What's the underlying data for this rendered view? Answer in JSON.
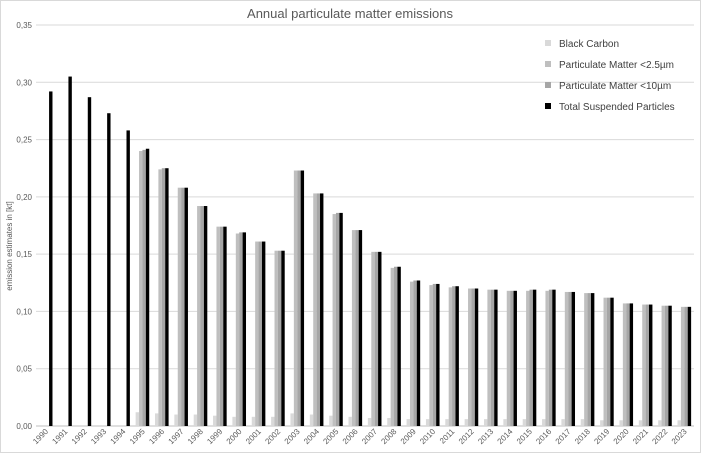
{
  "chart_data": {
    "type": "bar",
    "title": "Annual particulate matter emissions",
    "ylabel": "emission estimates in [kt]",
    "xlabel": "",
    "ylim": [
      0,
      0.35
    ],
    "yticks": [
      "0,00",
      "0,05",
      "0,10",
      "0,15",
      "0,20",
      "0,25",
      "0,30",
      "0,35"
    ],
    "grid": true,
    "legend_position": "top-right",
    "categories": [
      "1990",
      "1991",
      "1992",
      "1993",
      "1994",
      "1995",
      "1996",
      "1997",
      "1998",
      "1999",
      "2000",
      "2001",
      "2002",
      "2003",
      "2004",
      "2005",
      "2006",
      "2007",
      "2008",
      "2009",
      "2010",
      "2011",
      "2012",
      "2013",
      "2014",
      "2015",
      "2016",
      "2017",
      "2018",
      "2019",
      "2020",
      "2021",
      "2022",
      "2023"
    ],
    "series": [
      {
        "name": "Black Carbon",
        "color": "#d9d9d9",
        "values": [
          null,
          null,
          null,
          null,
          null,
          0.012,
          0.011,
          0.01,
          0.01,
          0.009,
          0.008,
          0.008,
          0.008,
          0.011,
          0.01,
          0.009,
          0.008,
          0.007,
          0.007,
          0.006,
          0.006,
          0.006,
          0.006,
          0.006,
          0.006,
          0.006,
          0.006,
          0.006,
          0.006,
          0.005,
          0.005,
          0.005,
          0.005,
          0.005
        ]
      },
      {
        "name": "Particulate Matter <2.5µm",
        "color": "#bfbfbf",
        "values": [
          null,
          null,
          null,
          null,
          null,
          0.24,
          0.224,
          0.208,
          0.192,
          0.174,
          0.168,
          0.161,
          0.153,
          0.223,
          0.203,
          0.185,
          0.171,
          0.152,
          0.138,
          0.126,
          0.123,
          0.121,
          0.12,
          0.119,
          0.118,
          0.118,
          0.118,
          0.117,
          0.116,
          0.112,
          0.107,
          0.106,
          0.105,
          0.104
        ]
      },
      {
        "name": "Particulate Matter <10µm",
        "color": "#a6a6a6",
        "values": [
          null,
          null,
          null,
          null,
          null,
          0.241,
          0.225,
          0.208,
          0.192,
          0.174,
          0.169,
          0.161,
          0.153,
          0.223,
          0.203,
          0.186,
          0.171,
          0.152,
          0.139,
          0.127,
          0.124,
          0.122,
          0.12,
          0.119,
          0.118,
          0.119,
          0.119,
          0.117,
          0.116,
          0.112,
          0.107,
          0.106,
          0.105,
          0.104
        ]
      },
      {
        "name": "Total Suspended Particles",
        "color": "#000000",
        "values": [
          0.292,
          0.305,
          0.287,
          0.273,
          0.258,
          0.242,
          0.225,
          0.208,
          0.192,
          0.174,
          0.169,
          0.161,
          0.153,
          0.223,
          0.203,
          0.186,
          0.171,
          0.152,
          0.139,
          0.127,
          0.124,
          0.122,
          0.12,
          0.119,
          0.118,
          0.119,
          0.119,
          0.117,
          0.116,
          0.112,
          0.107,
          0.106,
          0.105,
          0.104
        ]
      }
    ]
  }
}
